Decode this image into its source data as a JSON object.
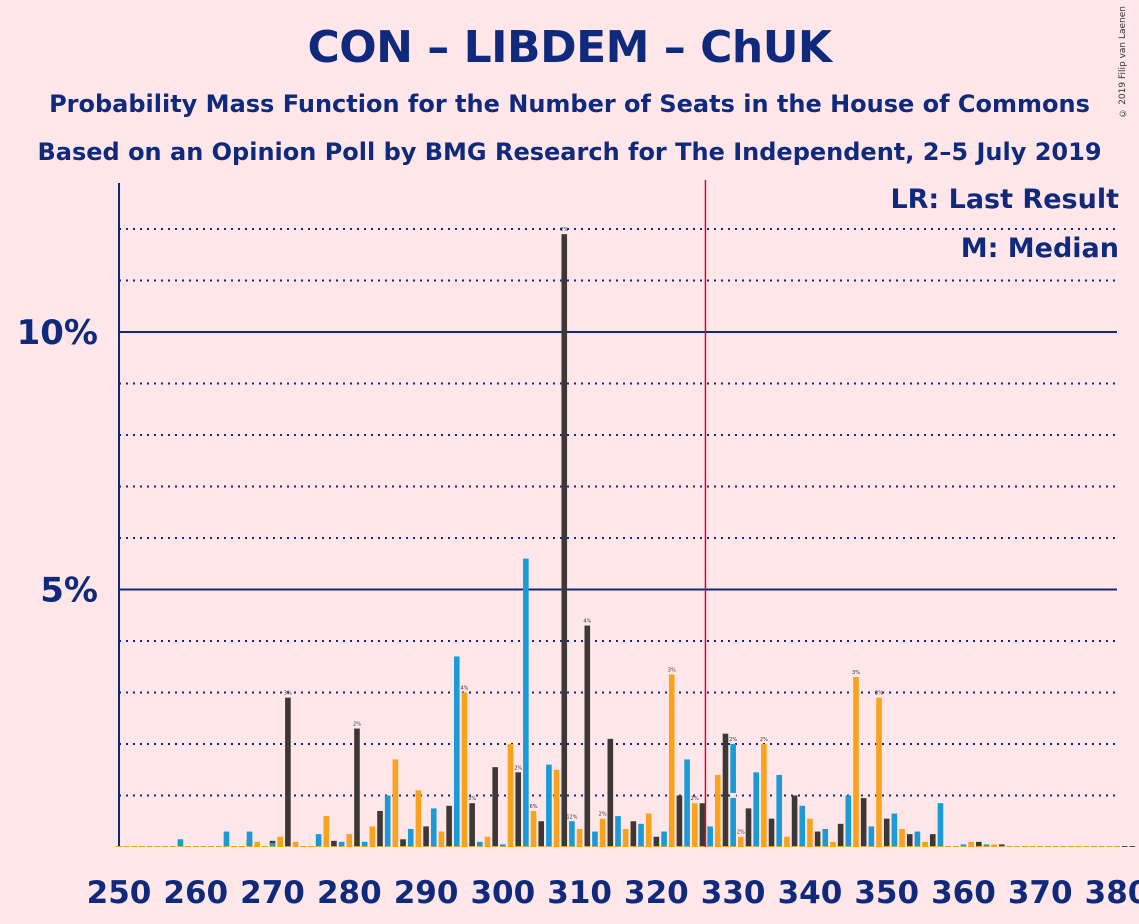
{
  "chart_data": {
    "type": "bar",
    "title": "CON – LIBDEM – ChUK",
    "subtitle": "Probability Mass Function for the Number of Seats in the House of Commons",
    "subtitle2": "Based on an Opinion Poll by BMG Research for The Independent, 2–5 July 2019",
    "legend": {
      "lr": "LR: Last Result",
      "median": "M: Median"
    },
    "copyright": "© 2019 Filip van Laenen",
    "x_range": [
      250,
      380
    ],
    "x_ticks": [
      "250",
      "260",
      "270",
      "280",
      "290",
      "300",
      "310",
      "320",
      "330",
      "340",
      "350",
      "360",
      "370",
      "380"
    ],
    "y_ticks": [
      {
        "value": 5,
        "label": "5%"
      },
      {
        "value": 10,
        "label": "10%"
      }
    ],
    "ylim": [
      0,
      13
    ],
    "last_result": 326,
    "median": 330,
    "colors": {
      "dark": "#3D3835",
      "blue": "#1A9AD6",
      "orange": "#FAA21B",
      "lr_line": "#C8102E",
      "axis": "#0F2A7C",
      "background": "#FFE6E9"
    },
    "series": [
      {
        "name": "",
        "color": "dark",
        "offset": 0,
        "values": [
          0,
          0,
          0,
          0,
          0,
          0,
          0,
          0,
          0,
          0,
          0,
          0,
          0,
          0,
          0,
          0,
          0,
          0.15,
          0,
          0,
          0.12,
          0,
          2.9,
          0,
          0,
          0,
          0,
          0,
          0.12,
          0,
          0,
          2.3,
          0,
          0,
          0.7,
          0,
          0,
          0.15,
          0,
          0,
          0.4,
          0,
          0,
          0.8,
          0,
          0,
          0.85,
          0,
          0,
          1.55,
          0,
          0,
          1.45,
          0,
          0,
          0.5,
          0,
          0,
          11.9,
          0,
          0,
          4.3,
          0,
          0,
          2.1,
          0,
          0,
          0.5,
          0,
          0,
          0.2,
          0,
          0,
          1.0,
          0,
          0,
          0.85,
          0,
          0,
          2.2,
          0,
          0,
          0.75,
          0,
          0,
          0.55,
          0,
          0,
          1.0,
          0,
          0,
          0.3,
          0,
          0,
          0.45,
          0,
          0,
          0.95,
          0,
          0,
          0.55,
          0,
          0,
          0.25,
          0,
          0,
          0.25,
          0,
          0,
          0,
          0,
          0,
          0.1,
          0,
          0,
          0.05,
          0,
          0,
          0,
          0,
          0,
          0,
          0,
          0,
          0,
          0,
          0,
          0,
          0,
          0,
          0,
          0,
          0
        ]
      },
      {
        "name": "",
        "color": "blue",
        "offset": 0,
        "values": [
          0,
          0,
          0,
          0,
          0,
          0,
          0,
          0,
          0.15,
          0,
          0,
          0,
          0,
          0,
          0.3,
          0,
          0,
          0.3,
          0,
          0,
          0.08,
          0,
          0,
          0,
          0,
          0,
          0.25,
          0,
          0,
          0.1,
          0,
          0,
          0.1,
          0,
          0,
          1.0,
          0,
          0,
          0.35,
          0,
          0,
          0.75,
          0,
          0,
          3.7,
          0,
          0,
          0.1,
          0,
          0,
          0.05,
          0,
          0,
          5.6,
          0,
          0,
          1.6,
          0,
          0,
          0.5,
          0,
          0,
          0.3,
          0,
          0,
          0.6,
          0,
          0,
          0.45,
          0,
          0,
          0.3,
          0,
          0,
          1.7,
          0,
          0,
          0.4,
          0,
          0,
          2.0,
          0,
          0,
          1.45,
          0,
          0,
          1.4,
          0,
          0,
          0.8,
          0,
          0,
          0.35,
          0,
          0,
          1.0,
          0,
          0,
          0.4,
          0,
          0,
          0.65,
          0,
          0,
          0.3,
          0,
          0,
          0.85,
          0,
          0,
          0.05,
          0,
          0,
          0.05,
          0,
          0,
          0,
          0,
          0,
          0,
          0,
          0,
          0,
          0,
          0,
          0,
          0,
          0,
          0,
          0,
          0
        ]
      },
      {
        "name": "",
        "color": "orange",
        "offset": 0,
        "values": [
          0,
          0,
          0,
          0,
          0,
          0,
          0,
          0,
          0,
          0,
          0,
          0,
          0,
          0,
          0,
          0,
          0,
          0,
          0.1,
          0,
          0,
          0.2,
          0,
          0.1,
          0,
          0,
          0,
          0.6,
          0,
          0,
          0.25,
          0,
          0,
          0.4,
          0,
          0,
          1.7,
          0,
          0,
          1.1,
          0,
          0,
          0.3,
          0,
          0,
          3.0,
          0,
          0,
          0.2,
          0,
          0,
          2.0,
          0,
          0,
          0.7,
          0,
          0,
          1.5,
          0,
          0,
          0.35,
          0,
          0,
          0.55,
          0,
          0,
          0.35,
          0,
          0,
          0.65,
          0,
          0,
          3.35,
          0,
          0,
          0.85,
          0,
          0,
          1.4,
          0,
          0,
          0.2,
          0,
          0,
          2.0,
          0,
          0,
          0.2,
          0,
          0,
          0.55,
          0,
          0,
          0.1,
          0,
          0,
          3.3,
          0,
          0,
          2.9,
          0,
          0,
          0.35,
          0,
          0,
          0.1,
          0,
          0,
          0,
          0,
          0,
          0.1,
          0,
          0,
          0.05,
          0,
          0,
          0,
          0,
          0,
          0,
          0,
          0,
          0,
          0,
          0,
          0,
          0,
          0,
          0,
          0
        ]
      }
    ],
    "bar_labels": {
      "272": "3%",
      "281": "2%",
      "295": "4%",
      "296": "3%",
      "302": "2%",
      "304": "6%",
      "308": "2%",
      "309": "12%",
      "311": "4%",
      "313": "2%",
      "322": "3%",
      "325": "2%",
      "330": "2%",
      "331": "2%",
      "334": "2%",
      "346": "3%",
      "349": "3%"
    }
  }
}
